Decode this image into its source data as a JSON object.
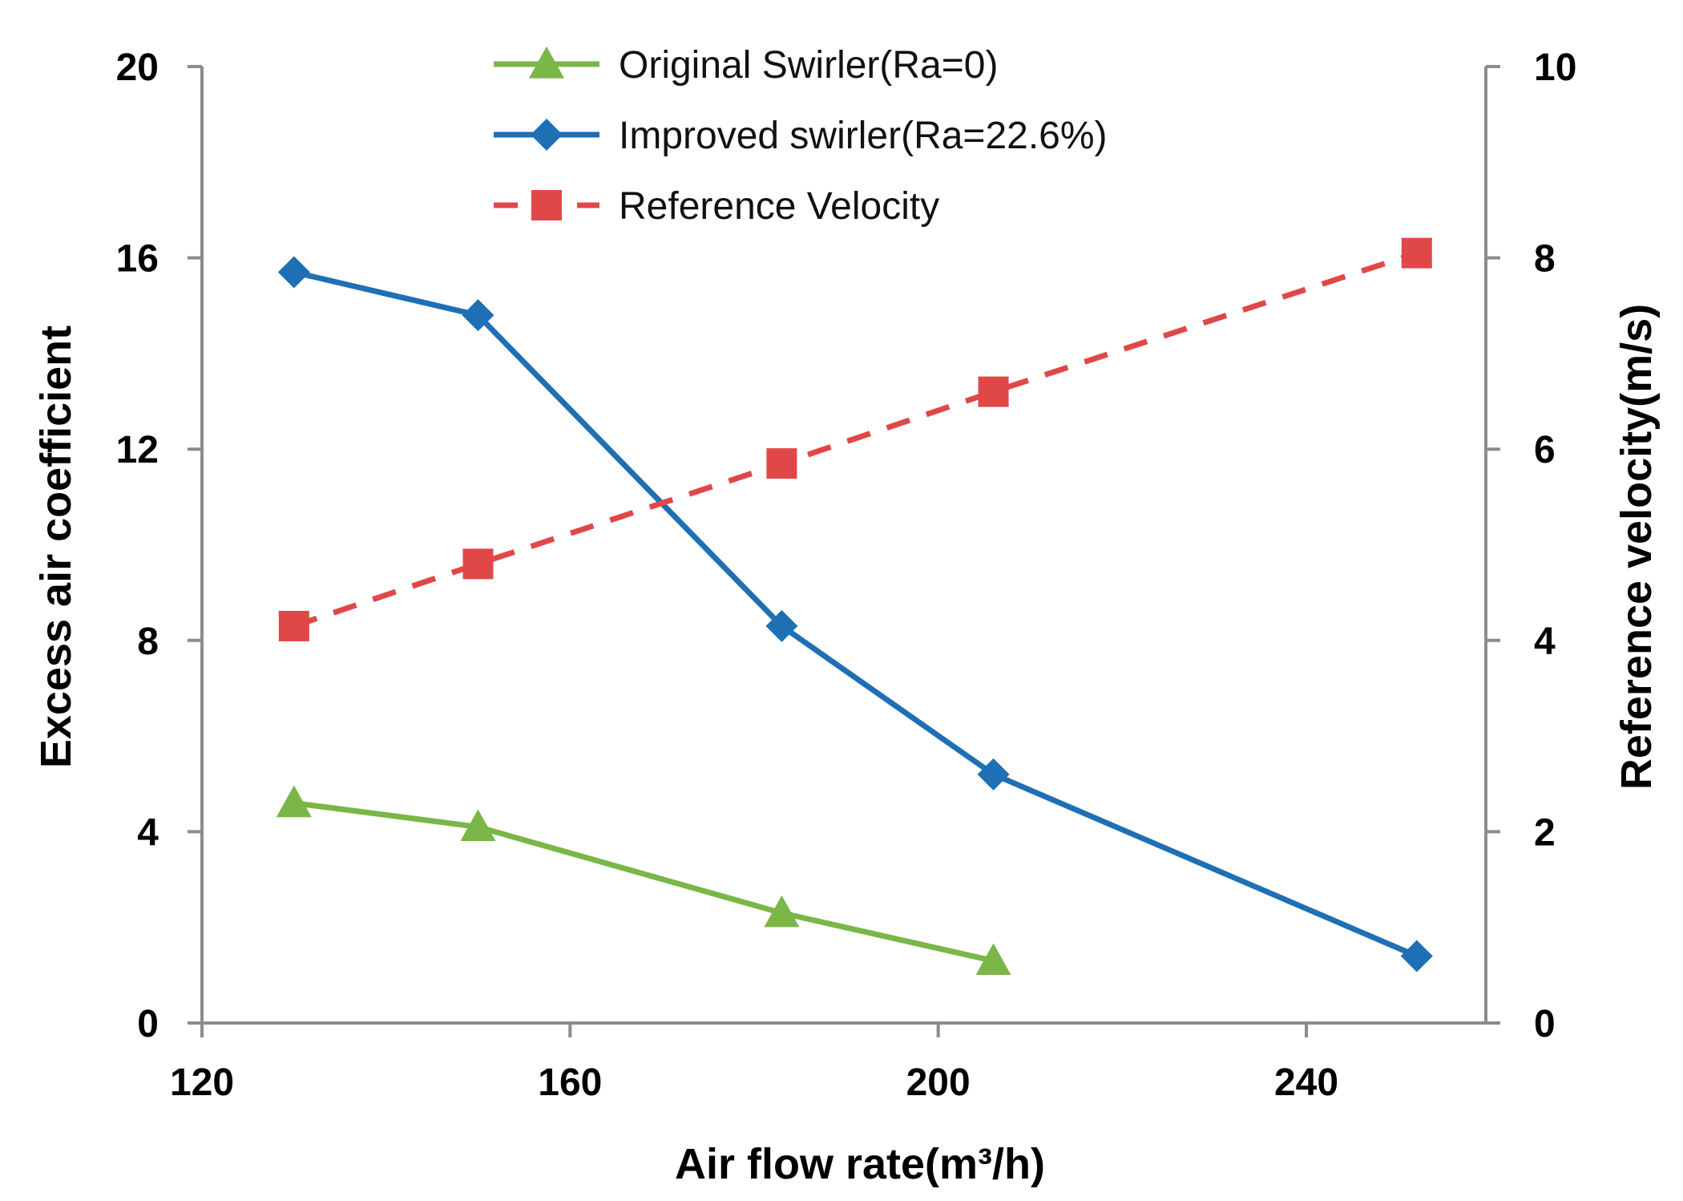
{
  "chart_data": {
    "type": "line",
    "xlabel": "Air flow rate(m³/h)",
    "ylabel_left": "Excess air coefficient",
    "ylabel_right": "Reference velocity(m/s)",
    "xlim": [
      120,
      240
    ],
    "ylim_left": [
      0,
      20
    ],
    "ylim_right": [
      0,
      10
    ],
    "x_ticks": [
      120,
      160,
      200,
      240
    ],
    "y_ticks_left": [
      0,
      4,
      8,
      12,
      16,
      20
    ],
    "y_ticks_right": [
      0,
      2,
      4,
      6,
      8,
      10
    ],
    "grid": false,
    "legend_position": "top",
    "series": [
      {
        "name": "Original Swirler(Ra=0)",
        "axis": "left",
        "color": "#7ab648",
        "marker": "triangle",
        "line_style": "solid",
        "x": [
          130,
          150,
          183,
          206
        ],
        "y": [
          4.6,
          4.1,
          2.3,
          1.3
        ]
      },
      {
        "name": "Improved swirler(Ra=22.6%)",
        "axis": "left",
        "color": "#1f6fb5",
        "marker": "diamond",
        "line_style": "solid",
        "x": [
          130,
          150,
          183,
          206,
          252
        ],
        "y": [
          15.7,
          14.8,
          8.3,
          5.2,
          1.4
        ]
      },
      {
        "name": "Reference Velocity",
        "axis": "right",
        "color": "#e04848",
        "marker": "square",
        "line_style": "dashed",
        "x": [
          130,
          150,
          183,
          206,
          252
        ],
        "y": [
          4.15,
          4.8,
          5.85,
          6.6,
          8.05
        ]
      }
    ]
  }
}
